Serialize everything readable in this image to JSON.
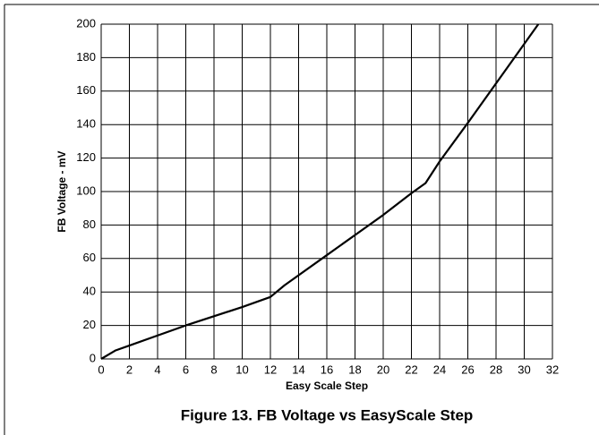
{
  "chart_data": {
    "type": "line",
    "title": "Figure 13. FB Voltage vs EasyScale Step",
    "x_label": "Easy Scale Step",
    "y_label": "FB Voltage - mV",
    "x": [
      0,
      1,
      2,
      6,
      10,
      12,
      13,
      16,
      20,
      22,
      23,
      24,
      26,
      31
    ],
    "series": [
      {
        "name": "FB Voltage",
        "color": "#000000",
        "values": [
          0,
          5,
          8,
          20,
          31,
          37,
          44,
          62,
          86,
          99,
          105,
          118,
          141,
          200
        ]
      }
    ],
    "xlim": [
      0,
      32
    ],
    "xticks": [
      0,
      2,
      4,
      6,
      8,
      10,
      12,
      14,
      16,
      18,
      20,
      22,
      24,
      26,
      28,
      30,
      32
    ],
    "ylim": [
      0,
      200
    ],
    "yticks": [
      0,
      20,
      40,
      60,
      80,
      100,
      120,
      140,
      160,
      180,
      200
    ],
    "grid": true
  }
}
